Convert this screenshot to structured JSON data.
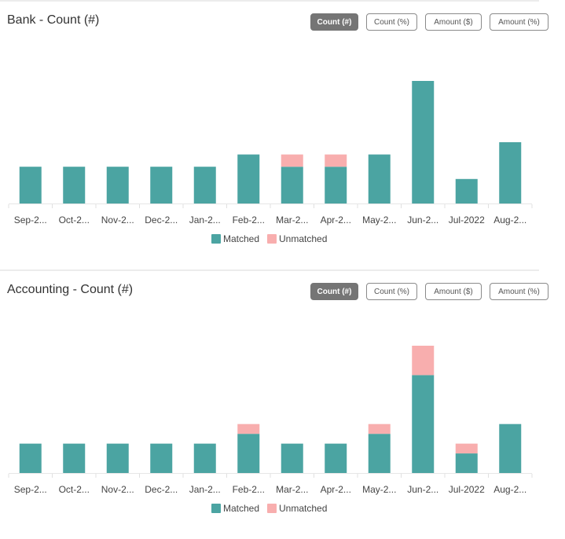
{
  "colors": {
    "matched": "#4ba4a2",
    "unmatched": "#f8aeae",
    "active_button": "#757575"
  },
  "panels": [
    {
      "title": "Bank - Count (#)",
      "buttons": [
        "Count (#)",
        "Count (%)",
        "Amount ($)",
        "Amount (%)"
      ],
      "active_button": "Count (#)",
      "legend": [
        "Matched",
        "Unmatched"
      ]
    },
    {
      "title": "Accounting - Count (#)",
      "buttons": [
        "Count (#)",
        "Count (%)",
        "Amount ($)",
        "Amount (%)"
      ],
      "active_button": "Count (#)",
      "legend": [
        "Matched",
        "Unmatched"
      ]
    }
  ],
  "chart_data": [
    {
      "type": "bar",
      "stacked": true,
      "title": "Bank - Count (#)",
      "categories": [
        "Sep-2...",
        "Oct-2...",
        "Nov-2...",
        "Dec-2...",
        "Jan-2...",
        "Feb-2...",
        "Mar-2...",
        "Apr-2...",
        "May-2...",
        "Jun-2...",
        "Jul-2022",
        "Aug-2..."
      ],
      "series": [
        {
          "name": "Matched",
          "values": [
            3,
            3,
            3,
            3,
            3,
            4,
            3,
            3,
            4,
            10,
            2,
            5
          ]
        },
        {
          "name": "Unmatched",
          "values": [
            0,
            0,
            0,
            0,
            0,
            0,
            1,
            1,
            0,
            0,
            0,
            0
          ]
        }
      ],
      "ylim": [
        0,
        10
      ],
      "grid": false,
      "legend_position": "bottom-center"
    },
    {
      "type": "bar",
      "stacked": true,
      "title": "Accounting - Count (#)",
      "categories": [
        "Sep-2...",
        "Oct-2...",
        "Nov-2...",
        "Dec-2...",
        "Jan-2...",
        "Feb-2...",
        "Mar-2...",
        "Apr-2...",
        "May-2...",
        "Jun-2...",
        "Jul-2022",
        "Aug-2..."
      ],
      "series": [
        {
          "name": "Matched",
          "values": [
            3,
            3,
            3,
            3,
            3,
            4,
            3,
            3,
            4,
            10,
            2,
            5
          ]
        },
        {
          "name": "Unmatched",
          "values": [
            0,
            0,
            0,
            0,
            0,
            1,
            0,
            0,
            1,
            3,
            1,
            0
          ]
        }
      ],
      "ylim": [
        0,
        13
      ],
      "grid": false,
      "legend_position": "bottom-center"
    }
  ]
}
